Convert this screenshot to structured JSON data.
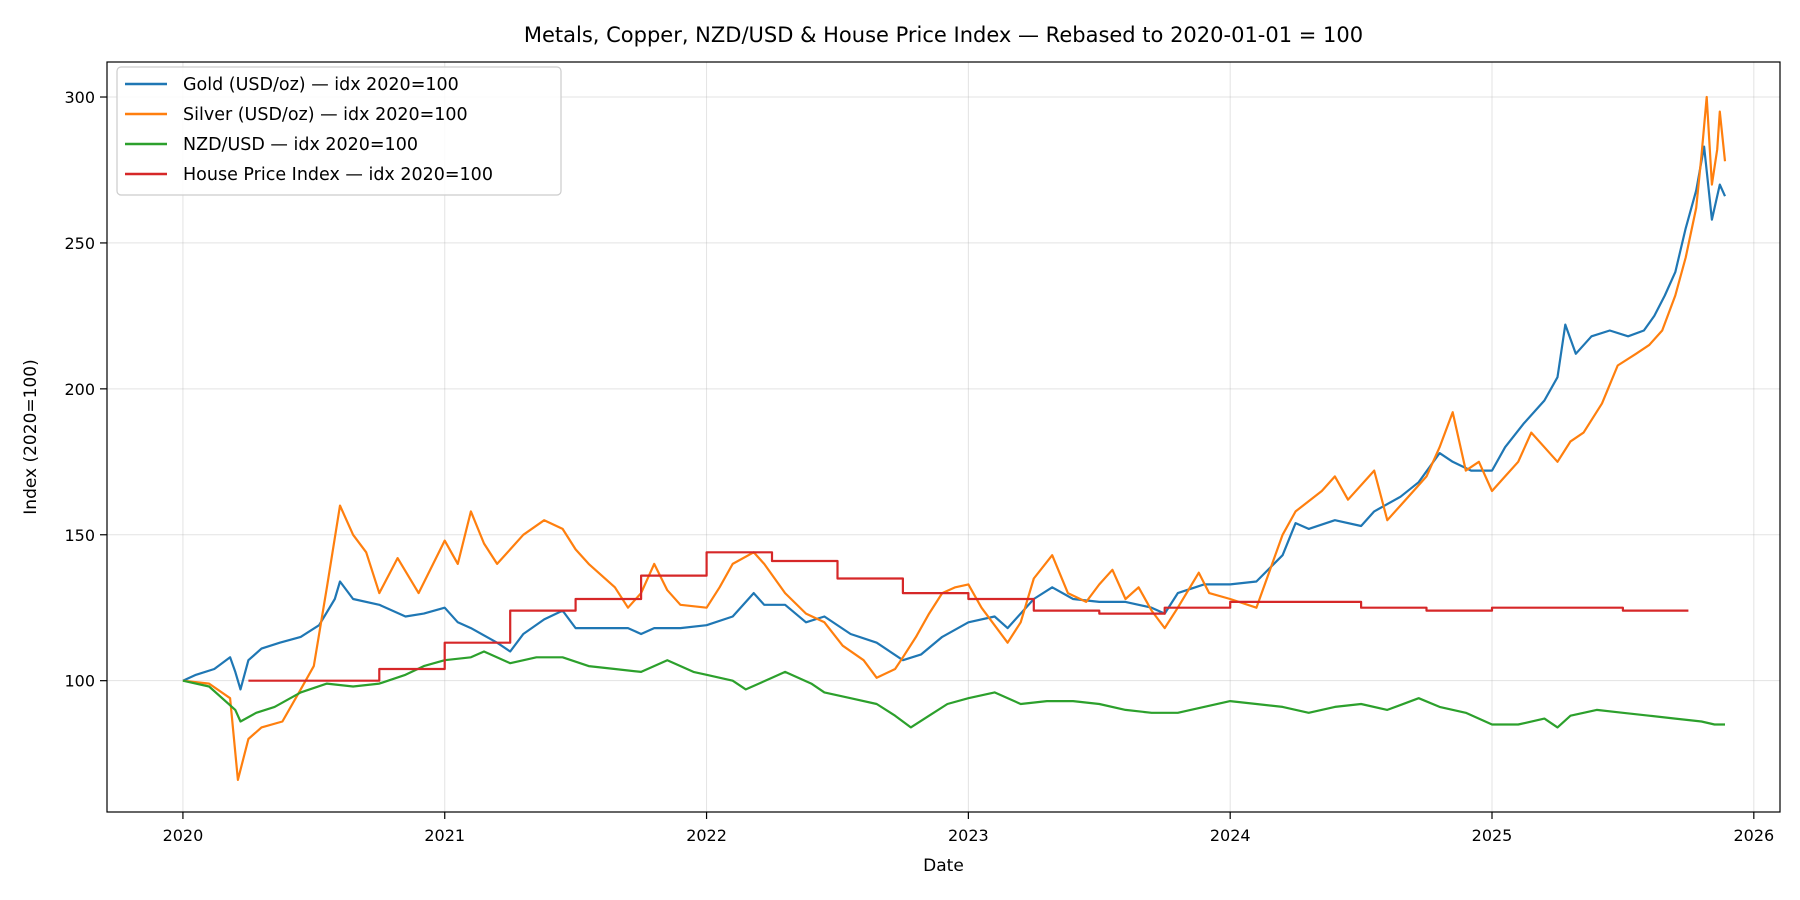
{
  "chart_data": {
    "type": "line",
    "title": "Metals, Copper, NZD/USD & House Price Index — Rebased to 2020-01-01 = 100",
    "xlabel": "Date",
    "ylabel": "Index (2020=100)",
    "xlim": [
      2019.71,
      2026.1
    ],
    "ylim": [
      55,
      312
    ],
    "x_ticks": [
      2020,
      2021,
      2022,
      2023,
      2024,
      2025,
      2026
    ],
    "x_tick_labels": [
      "2020",
      "2021",
      "2022",
      "2023",
      "2024",
      "2025",
      "2026"
    ],
    "y_ticks": [
      100,
      150,
      200,
      250,
      300
    ],
    "y_tick_labels": [
      "100",
      "150",
      "200",
      "250",
      "300"
    ],
    "grid": true,
    "legend_position": "top-left",
    "series": [
      {
        "name": "Gold (USD/oz) — idx 2020=100",
        "color": "#1f77b4",
        "step": false,
        "points": [
          [
            2020.0,
            100
          ],
          [
            2020.05,
            102
          ],
          [
            2020.12,
            104
          ],
          [
            2020.18,
            108
          ],
          [
            2020.2,
            103
          ],
          [
            2020.22,
            97
          ],
          [
            2020.25,
            107
          ],
          [
            2020.3,
            111
          ],
          [
            2020.37,
            113
          ],
          [
            2020.45,
            115
          ],
          [
            2020.52,
            119
          ],
          [
            2020.58,
            128
          ],
          [
            2020.6,
            134
          ],
          [
            2020.65,
            128
          ],
          [
            2020.75,
            126
          ],
          [
            2020.85,
            122
          ],
          [
            2020.92,
            123
          ],
          [
            2021.0,
            125
          ],
          [
            2021.05,
            120
          ],
          [
            2021.1,
            118
          ],
          [
            2021.2,
            113
          ],
          [
            2021.25,
            110
          ],
          [
            2021.3,
            116
          ],
          [
            2021.38,
            121
          ],
          [
            2021.45,
            124
          ],
          [
            2021.5,
            118
          ],
          [
            2021.6,
            118
          ],
          [
            2021.7,
            118
          ],
          [
            2021.75,
            116
          ],
          [
            2021.8,
            118
          ],
          [
            2021.9,
            118
          ],
          [
            2022.0,
            119
          ],
          [
            2022.1,
            122
          ],
          [
            2022.18,
            130
          ],
          [
            2022.22,
            126
          ],
          [
            2022.3,
            126
          ],
          [
            2022.38,
            120
          ],
          [
            2022.45,
            122
          ],
          [
            2022.55,
            116
          ],
          [
            2022.65,
            113
          ],
          [
            2022.75,
            107
          ],
          [
            2022.82,
            109
          ],
          [
            2022.9,
            115
          ],
          [
            2023.0,
            120
          ],
          [
            2023.1,
            122
          ],
          [
            2023.15,
            118
          ],
          [
            2023.25,
            128
          ],
          [
            2023.32,
            132
          ],
          [
            2023.4,
            128
          ],
          [
            2023.5,
            127
          ],
          [
            2023.6,
            127
          ],
          [
            2023.7,
            125
          ],
          [
            2023.75,
            123
          ],
          [
            2023.8,
            130
          ],
          [
            2023.9,
            133
          ],
          [
            2024.0,
            133
          ],
          [
            2024.1,
            134
          ],
          [
            2024.2,
            143
          ],
          [
            2024.25,
            154
          ],
          [
            2024.3,
            152
          ],
          [
            2024.4,
            155
          ],
          [
            2024.5,
            153
          ],
          [
            2024.55,
            158
          ],
          [
            2024.65,
            163
          ],
          [
            2024.72,
            168
          ],
          [
            2024.8,
            178
          ],
          [
            2024.85,
            175
          ],
          [
            2024.92,
            172
          ],
          [
            2025.0,
            172
          ],
          [
            2025.05,
            180
          ],
          [
            2025.12,
            188
          ],
          [
            2025.2,
            196
          ],
          [
            2025.25,
            204
          ],
          [
            2025.28,
            222
          ],
          [
            2025.32,
            212
          ],
          [
            2025.38,
            218
          ],
          [
            2025.45,
            220
          ],
          [
            2025.52,
            218
          ],
          [
            2025.58,
            220
          ],
          [
            2025.62,
            225
          ],
          [
            2025.66,
            232
          ],
          [
            2025.7,
            240
          ],
          [
            2025.74,
            255
          ],
          [
            2025.78,
            268
          ],
          [
            2025.81,
            283
          ],
          [
            2025.84,
            258
          ],
          [
            2025.87,
            270
          ],
          [
            2025.89,
            266
          ]
        ]
      },
      {
        "name": "Silver (USD/oz) — idx 2020=100",
        "color": "#ff7f0e",
        "step": false,
        "points": [
          [
            2020.0,
            100
          ],
          [
            2020.1,
            99
          ],
          [
            2020.18,
            94
          ],
          [
            2020.21,
            66
          ],
          [
            2020.25,
            80
          ],
          [
            2020.3,
            84
          ],
          [
            2020.38,
            86
          ],
          [
            2020.45,
            97
          ],
          [
            2020.5,
            105
          ],
          [
            2020.55,
            132
          ],
          [
            2020.6,
            160
          ],
          [
            2020.65,
            150
          ],
          [
            2020.7,
            144
          ],
          [
            2020.75,
            130
          ],
          [
            2020.82,
            142
          ],
          [
            2020.9,
            130
          ],
          [
            2021.0,
            148
          ],
          [
            2021.05,
            140
          ],
          [
            2021.1,
            158
          ],
          [
            2021.15,
            147
          ],
          [
            2021.2,
            140
          ],
          [
            2021.25,
            145
          ],
          [
            2021.3,
            150
          ],
          [
            2021.38,
            155
          ],
          [
            2021.45,
            152
          ],
          [
            2021.5,
            145
          ],
          [
            2021.55,
            140
          ],
          [
            2021.65,
            132
          ],
          [
            2021.7,
            125
          ],
          [
            2021.75,
            130
          ],
          [
            2021.8,
            140
          ],
          [
            2021.85,
            131
          ],
          [
            2021.9,
            126
          ],
          [
            2022.0,
            125
          ],
          [
            2022.05,
            132
          ],
          [
            2022.1,
            140
          ],
          [
            2022.18,
            144
          ],
          [
            2022.22,
            140
          ],
          [
            2022.3,
            130
          ],
          [
            2022.38,
            123
          ],
          [
            2022.45,
            120
          ],
          [
            2022.52,
            112
          ],
          [
            2022.6,
            107
          ],
          [
            2022.65,
            101
          ],
          [
            2022.72,
            104
          ],
          [
            2022.75,
            108
          ],
          [
            2022.8,
            115
          ],
          [
            2022.85,
            123
          ],
          [
            2022.9,
            130
          ],
          [
            2022.95,
            132
          ],
          [
            2023.0,
            133
          ],
          [
            2023.05,
            125
          ],
          [
            2023.15,
            113
          ],
          [
            2023.2,
            120
          ],
          [
            2023.25,
            135
          ],
          [
            2023.32,
            143
          ],
          [
            2023.38,
            130
          ],
          [
            2023.45,
            127
          ],
          [
            2023.5,
            133
          ],
          [
            2023.55,
            138
          ],
          [
            2023.6,
            128
          ],
          [
            2023.65,
            132
          ],
          [
            2023.7,
            124
          ],
          [
            2023.75,
            118
          ],
          [
            2023.8,
            125
          ],
          [
            2023.88,
            137
          ],
          [
            2023.92,
            130
          ],
          [
            2024.0,
            128
          ],
          [
            2024.1,
            125
          ],
          [
            2024.2,
            150
          ],
          [
            2024.25,
            158
          ],
          [
            2024.35,
            165
          ],
          [
            2024.4,
            170
          ],
          [
            2024.45,
            162
          ],
          [
            2024.55,
            172
          ],
          [
            2024.6,
            155
          ],
          [
            2024.65,
            160
          ],
          [
            2024.7,
            165
          ],
          [
            2024.75,
            170
          ],
          [
            2024.8,
            180
          ],
          [
            2024.85,
            192
          ],
          [
            2024.9,
            172
          ],
          [
            2024.95,
            175
          ],
          [
            2025.0,
            165
          ],
          [
            2025.05,
            170
          ],
          [
            2025.1,
            175
          ],
          [
            2025.15,
            185
          ],
          [
            2025.2,
            180
          ],
          [
            2025.25,
            175
          ],
          [
            2025.3,
            182
          ],
          [
            2025.35,
            185
          ],
          [
            2025.42,
            195
          ],
          [
            2025.48,
            208
          ],
          [
            2025.55,
            212
          ],
          [
            2025.6,
            215
          ],
          [
            2025.65,
            220
          ],
          [
            2025.7,
            232
          ],
          [
            2025.74,
            245
          ],
          [
            2025.78,
            262
          ],
          [
            2025.8,
            280
          ],
          [
            2025.82,
            300
          ],
          [
            2025.84,
            270
          ],
          [
            2025.86,
            282
          ],
          [
            2025.87,
            295
          ],
          [
            2025.89,
            278
          ]
        ]
      },
      {
        "name": "NZD/USD — idx 2020=100",
        "color": "#2ca02c",
        "step": false,
        "points": [
          [
            2020.0,
            100
          ],
          [
            2020.1,
            98
          ],
          [
            2020.2,
            90
          ],
          [
            2020.22,
            86
          ],
          [
            2020.28,
            89
          ],
          [
            2020.35,
            91
          ],
          [
            2020.45,
            96
          ],
          [
            2020.55,
            99
          ],
          [
            2020.65,
            98
          ],
          [
            2020.75,
            99
          ],
          [
            2020.85,
            102
          ],
          [
            2020.92,
            105
          ],
          [
            2021.0,
            107
          ],
          [
            2021.1,
            108
          ],
          [
            2021.15,
            110
          ],
          [
            2021.25,
            106
          ],
          [
            2021.35,
            108
          ],
          [
            2021.45,
            108
          ],
          [
            2021.55,
            105
          ],
          [
            2021.65,
            104
          ],
          [
            2021.75,
            103
          ],
          [
            2021.85,
            107
          ],
          [
            2021.95,
            103
          ],
          [
            2022.0,
            102
          ],
          [
            2022.1,
            100
          ],
          [
            2022.15,
            97
          ],
          [
            2022.25,
            101
          ],
          [
            2022.3,
            103
          ],
          [
            2022.4,
            99
          ],
          [
            2022.45,
            96
          ],
          [
            2022.55,
            94
          ],
          [
            2022.65,
            92
          ],
          [
            2022.72,
            88
          ],
          [
            2022.78,
            84
          ],
          [
            2022.85,
            88
          ],
          [
            2022.92,
            92
          ],
          [
            2023.0,
            94
          ],
          [
            2023.1,
            96
          ],
          [
            2023.2,
            92
          ],
          [
            2023.3,
            93
          ],
          [
            2023.4,
            93
          ],
          [
            2023.5,
            92
          ],
          [
            2023.6,
            90
          ],
          [
            2023.7,
            89
          ],
          [
            2023.8,
            89
          ],
          [
            2023.9,
            91
          ],
          [
            2024.0,
            93
          ],
          [
            2024.1,
            92
          ],
          [
            2024.2,
            91
          ],
          [
            2024.3,
            89
          ],
          [
            2024.4,
            91
          ],
          [
            2024.5,
            92
          ],
          [
            2024.6,
            90
          ],
          [
            2024.72,
            94
          ],
          [
            2024.8,
            91
          ],
          [
            2024.9,
            89
          ],
          [
            2025.0,
            85
          ],
          [
            2025.1,
            85
          ],
          [
            2025.2,
            87
          ],
          [
            2025.25,
            84
          ],
          [
            2025.3,
            88
          ],
          [
            2025.4,
            90
          ],
          [
            2025.5,
            89
          ],
          [
            2025.6,
            88
          ],
          [
            2025.7,
            87
          ],
          [
            2025.8,
            86
          ],
          [
            2025.85,
            85
          ],
          [
            2025.89,
            85
          ]
        ]
      },
      {
        "name": "House Price Index — idx 2020=100",
        "color": "#d62728",
        "step": true,
        "points": [
          [
            2020.25,
            100
          ],
          [
            2020.75,
            104
          ],
          [
            2021.0,
            113
          ],
          [
            2021.25,
            124
          ],
          [
            2021.5,
            128
          ],
          [
            2021.75,
            136
          ],
          [
            2022.0,
            144
          ],
          [
            2022.25,
            141
          ],
          [
            2022.5,
            135
          ],
          [
            2022.75,
            130
          ],
          [
            2023.0,
            128
          ],
          [
            2023.25,
            124
          ],
          [
            2023.5,
            123
          ],
          [
            2023.75,
            125
          ],
          [
            2024.0,
            127
          ],
          [
            2024.25,
            127
          ],
          [
            2024.5,
            125
          ],
          [
            2024.75,
            124
          ],
          [
            2025.0,
            125
          ],
          [
            2025.25,
            125
          ],
          [
            2025.5,
            124
          ]
        ]
      }
    ]
  }
}
